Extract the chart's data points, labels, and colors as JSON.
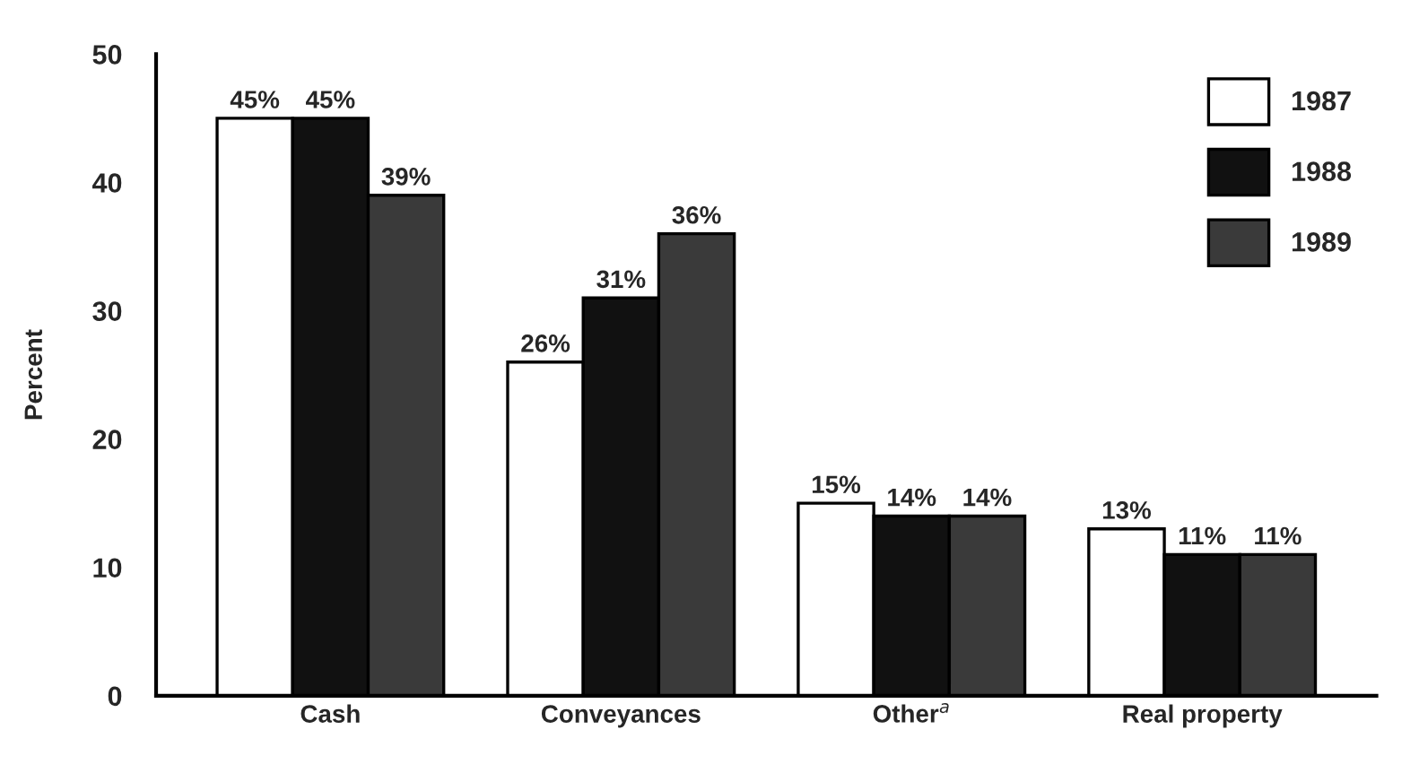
{
  "chart_data": {
    "type": "bar",
    "ylabel": "Percent",
    "categories": [
      "Cash",
      "Conveyances",
      "Other$^{a}$",
      "Real property"
    ],
    "series": [
      {
        "name": "1987",
        "color": "#ffffff",
        "values": [
          45,
          26,
          15,
          13
        ],
        "value_labels": [
          "45%",
          "26%",
          "15%",
          "13%"
        ]
      },
      {
        "name": "1988",
        "color": "#111111",
        "values": [
          45,
          31,
          14,
          11
        ],
        "value_labels": [
          "45%",
          "31%",
          "14%",
          "11%"
        ]
      },
      {
        "name": "1989",
        "color": "#3a3a3a",
        "values": [
          39,
          36,
          14,
          11
        ],
        "value_labels": [
          "39%",
          "36%",
          "14%",
          "11%"
        ]
      }
    ],
    "ylim": [
      0,
      50
    ],
    "yticks": [
      0,
      10,
      20,
      30,
      40,
      50
    ],
    "grid": false,
    "legend": "top right"
  }
}
